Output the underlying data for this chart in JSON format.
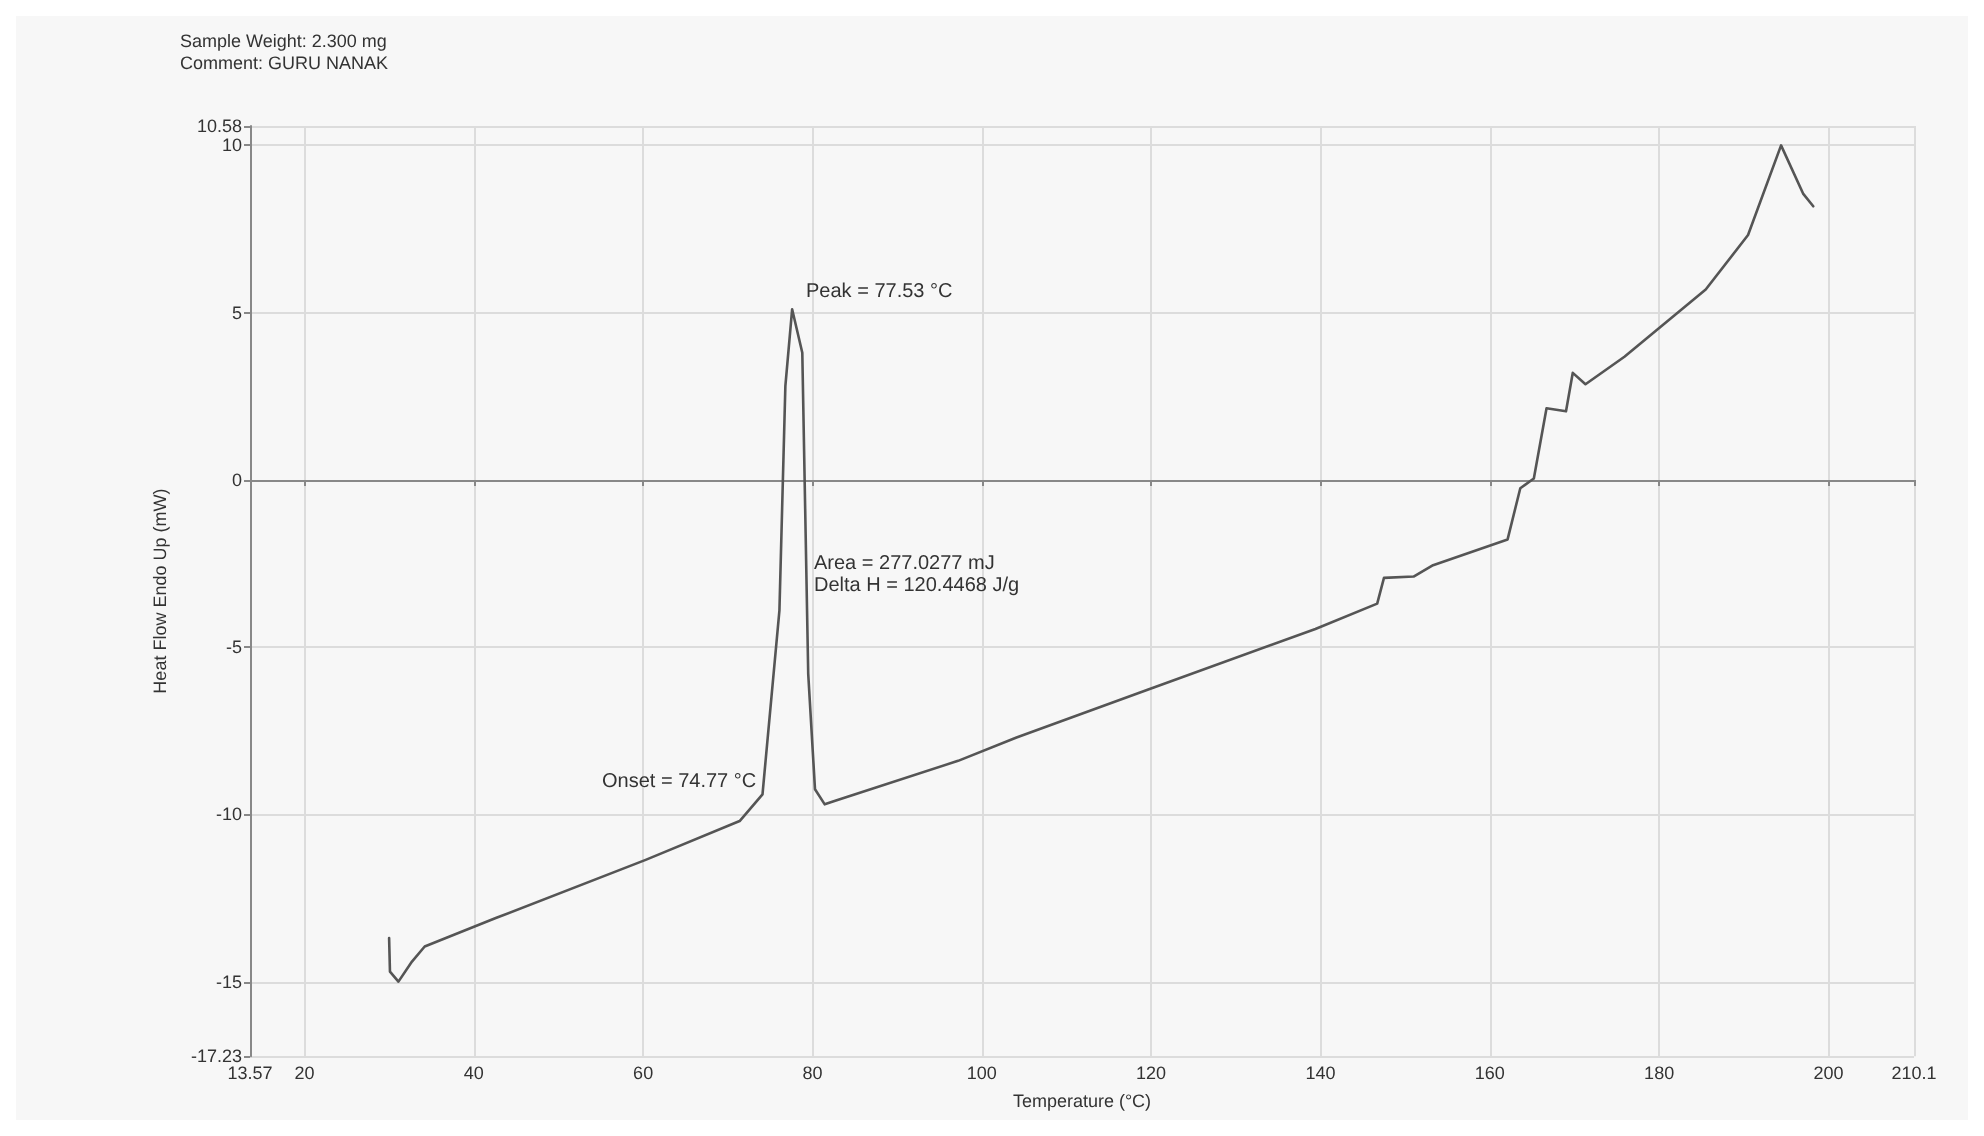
{
  "chart_data": {
    "type": "line",
    "xlabel": "Temperature (°C)",
    "ylabel": "Heat Flow Endo Up (mW)",
    "annotations": [
      "Sample Weight: 2.300 mg",
      "Comment: GURU NANAK",
      "Peak = 77.53 °C",
      "Area = 277.0277 mJ",
      "Delta H = 120.4468 J/g",
      "Onset = 74.77 °C"
    ],
    "series": [
      {
        "color": "#555555",
        "x": [
          30.0,
          30.1,
          31.1,
          32.7,
          34.2,
          42.6,
          60.3,
          71.4,
          74.1,
          76.1,
          76.8,
          77.6,
          78.8,
          79.5,
          80.3,
          81.45,
          82.6,
          97.2,
          104.1,
          119.5,
          139.4,
          146.7,
          147.5,
          151.0,
          153.3,
          162.1,
          163.6,
          165.2,
          166.7,
          169.0,
          169.8,
          171.3,
          175.9,
          185.5,
          190.5,
          194.4,
          197.0,
          198.2
        ],
        "values": [
          -13.7,
          -14.7,
          -15.0,
          -14.4,
          -13.95,
          -13.1,
          -11.36,
          -10.2,
          -9.4,
          -3.9,
          2.8,
          5.1,
          3.8,
          -5.8,
          -9.25,
          -9.7,
          -9.6,
          -8.4,
          -7.7,
          -6.28,
          -4.46,
          -3.7,
          -2.93,
          -2.89,
          -2.55,
          -1.78,
          -0.25,
          0.04,
          2.14,
          2.05,
          3.2,
          2.86,
          3.68,
          5.69,
          7.32,
          10.0,
          8.56,
          8.18
        ]
      }
    ],
    "xlim": [
      13.57,
      210.1
    ],
    "xticks": [
      13.57,
      20,
      40,
      60,
      80,
      100,
      120,
      140,
      160,
      180,
      200,
      210.1
    ],
    "ylim": [
      -17.23,
      10.58
    ],
    "yticks": [
      -17.23,
      -15,
      -10,
      -5,
      0,
      5,
      10,
      10.58
    ],
    "grid": true,
    "line_style": "solid"
  }
}
